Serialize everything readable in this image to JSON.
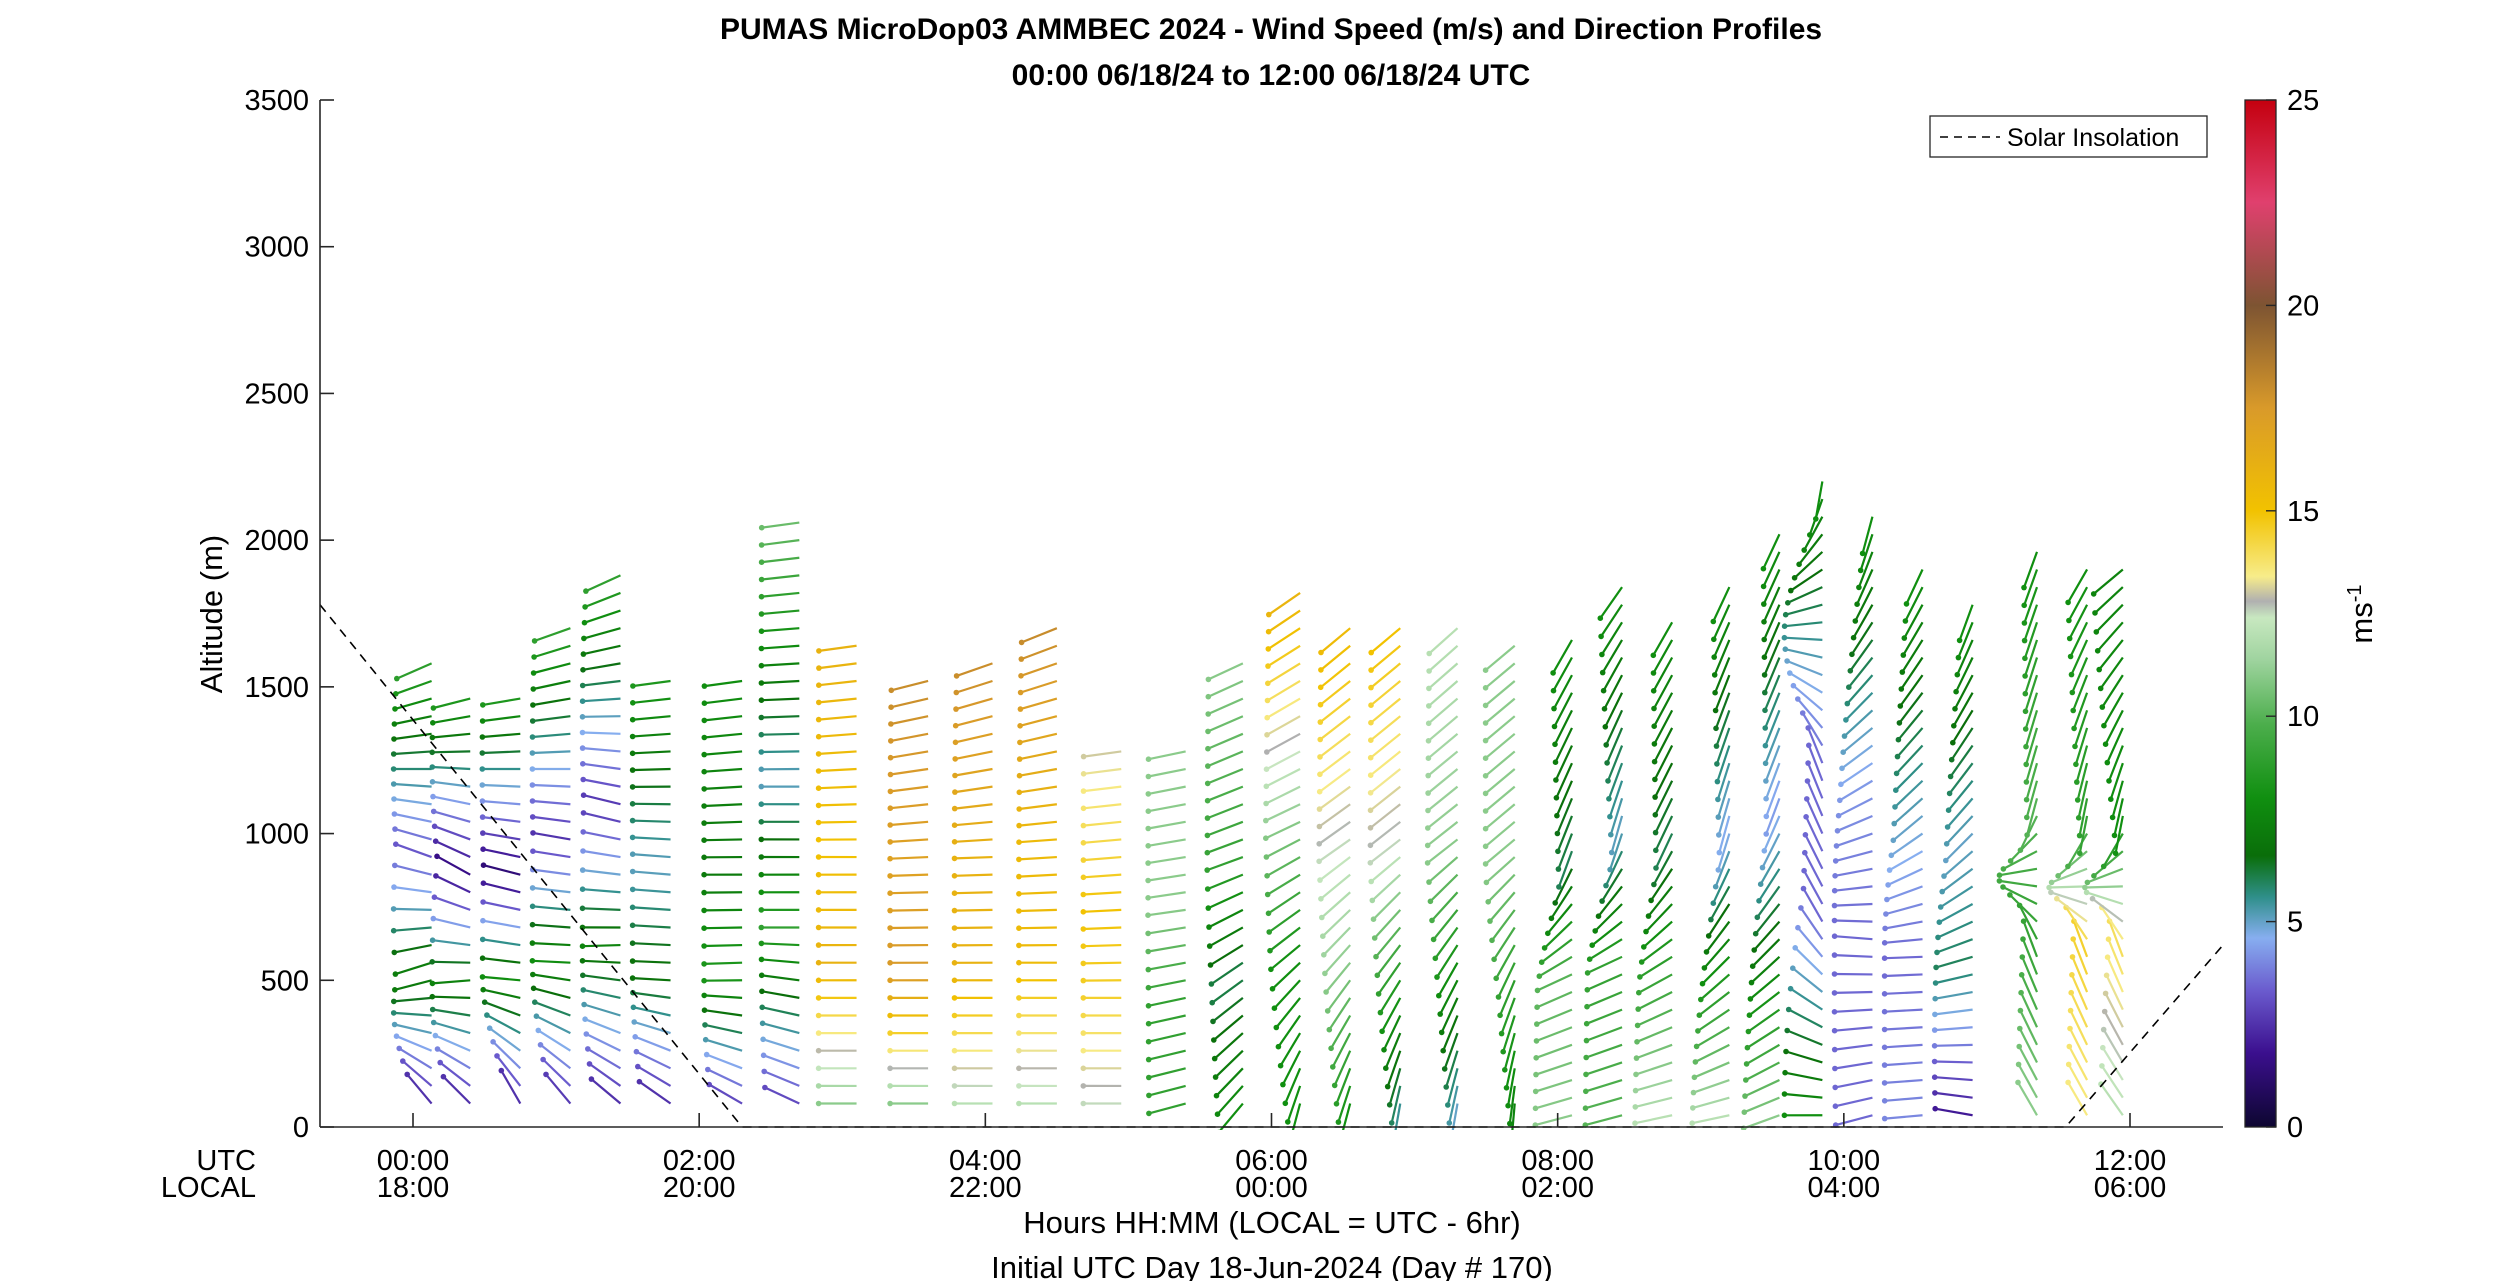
{
  "chart_data": {
    "type": "wind-barb-profile",
    "title_line1": "PUMAS MicroDop03 AMMBEC 2024 - Wind Speed (m/s) and Direction Profiles",
    "title_line2": "00:00 06/18/24 to 12:00 06/18/24  UTC",
    "ylabel": "Altitude (m)",
    "ylim": [
      0,
      3500
    ],
    "yticks": [
      0,
      500,
      1000,
      1500,
      2000,
      2500,
      3000,
      3500
    ],
    "xlim_hours": [
      -0.65,
      12.65
    ],
    "xticks_hours": [
      0,
      2,
      4,
      6,
      8,
      10,
      12
    ],
    "xticks_utc": [
      "00:00",
      "02:00",
      "04:00",
      "06:00",
      "08:00",
      "10:00",
      "12:00"
    ],
    "xticks_local": [
      "18:00",
      "20:00",
      "22:00",
      "00:00",
      "02:00",
      "04:00",
      "06:00"
    ],
    "row_label_utc": "UTC",
    "row_label_local": "LOCAL",
    "xlabel_line1": "Hours HH:MM  (LOCAL = UTC - 6hr)",
    "xlabel_line2": "Initial UTC Day 18-Jun-2024 (Day # 170)",
    "legend": {
      "label": "Solar Insolation",
      "position": "top-right",
      "line_style": "dashed"
    },
    "colorbar": {
      "label_base": "ms",
      "label_exp": "-1",
      "range": [
        0,
        25
      ],
      "ticks": [
        0,
        5,
        10,
        15,
        20,
        25
      ],
      "stops": [
        {
          "v": 0,
          "c": "#0d0630"
        },
        {
          "v": 1.8,
          "c": "#3b0f8e"
        },
        {
          "v": 3.3,
          "c": "#6a5acd"
        },
        {
          "v": 4.6,
          "c": "#87aef0"
        },
        {
          "v": 5.6,
          "c": "#2f8f8a"
        },
        {
          "v": 6.6,
          "c": "#0a6e0a"
        },
        {
          "v": 8.0,
          "c": "#108f10"
        },
        {
          "v": 9.8,
          "c": "#4cae4c"
        },
        {
          "v": 11.4,
          "c": "#a0d4a0"
        },
        {
          "v": 12.4,
          "c": "#c8e8c0"
        },
        {
          "v": 12.8,
          "c": "#b0b0b0"
        },
        {
          "v": 13.4,
          "c": "#f7ec8a"
        },
        {
          "v": 15.0,
          "c": "#f2c200"
        },
        {
          "v": 17.5,
          "c": "#d99a2a"
        },
        {
          "v": 20.0,
          "c": "#7d5432"
        },
        {
          "v": 22.5,
          "c": "#e0406e"
        },
        {
          "v": 25.0,
          "c": "#c4000f"
        }
      ]
    },
    "solar_insolation": {
      "x_hours": [
        -0.65,
        2.3,
        11.55,
        12.65
      ],
      "y_m": [
        1780,
        0,
        0,
        620
      ]
    },
    "profiles": [
      {
        "t": 0.13,
        "z": [
          80,
          1600
        ],
        "sp": [
          2.5,
          7.5,
          3.2,
          9
        ],
        "dir": [
          320,
          250,
          290,
          245
        ]
      },
      {
        "t": 0.4,
        "z": [
          80,
          1470
        ],
        "sp": [
          2.5,
          7.5,
          1.5,
          8.5
        ],
        "dir": [
          315,
          265,
          300,
          255
        ]
      },
      {
        "t": 0.75,
        "z": [
          80,
          1470
        ],
        "sp": [
          2.5,
          8,
          1.2,
          8.5
        ],
        "dir": [
          330,
          275,
          285,
          260
        ]
      },
      {
        "t": 1.1,
        "z": [
          80,
          1710
        ],
        "sp": [
          2.7,
          8,
          2.5,
          9
        ],
        "dir": [
          320,
          272,
          280,
          250
        ]
      },
      {
        "t": 1.45,
        "z": [
          80,
          1890
        ],
        "sp": [
          2.5,
          7.5,
          2.5,
          9
        ],
        "dir": [
          310,
          268,
          285,
          245
        ]
      },
      {
        "t": 1.8,
        "z": [
          80,
          1540
        ],
        "sp": [
          2.5,
          7,
          5,
          8.5
        ],
        "dir": [
          305,
          272,
          275,
          262
        ]
      },
      {
        "t": 2.3,
        "z": [
          80,
          1540
        ],
        "sp": [
          3,
          8.5,
          7,
          8
        ],
        "dir": [
          300,
          268,
          270,
          262
        ]
      },
      {
        "t": 2.7,
        "z": [
          80,
          2080
        ],
        "sp": [
          3,
          9,
          5,
          10.5
        ],
        "dir": [
          295,
          270,
          270,
          262
        ]
      },
      {
        "t": 3.1,
        "z": [
          80,
          1660
        ],
        "sp": [
          11,
          16,
          15,
          16
        ],
        "dir": [
          270,
          270,
          270,
          262
        ]
      },
      {
        "t": 3.6,
        "z": [
          80,
          1560
        ],
        "sp": [
          11,
          17.5,
          17,
          18
        ],
        "dir": [
          270,
          270,
          268,
          255
        ]
      },
      {
        "t": 4.05,
        "z": [
          80,
          1610
        ],
        "sp": [
          12,
          16,
          16,
          18
        ],
        "dir": [
          270,
          270,
          268,
          250
        ]
      },
      {
        "t": 4.5,
        "z": [
          80,
          1700
        ],
        "sp": [
          12,
          15.5,
          15.5,
          18
        ],
        "dir": [
          270,
          270,
          266,
          248
        ]
      },
      {
        "t": 4.95,
        "z": [
          80,
          1300
        ],
        "sp": [
          12.5,
          14.5,
          15,
          13
        ],
        "dir": [
          270,
          270,
          267,
          262
        ]
      },
      {
        "t": 5.4,
        "z": [
          80,
          1300
        ],
        "sp": [
          9,
          9,
          11,
          11
        ],
        "dir": [
          255,
          258,
          262,
          258
        ]
      },
      {
        "t": 5.8,
        "z": [
          80,
          1600
        ],
        "sp": [
          8,
          6,
          9,
          11
        ],
        "dir": [
          220,
          235,
          250,
          245
        ]
      },
      {
        "t": 6.2,
        "z": [
          80,
          1850
        ],
        "sp": [
          8,
          8,
          11,
          16
        ],
        "dir": [
          195,
          230,
          245,
          235
        ]
      },
      {
        "t": 6.55,
        "z": [
          80,
          1720
        ],
        "sp": [
          8,
          11,
          12.5,
          15.5
        ],
        "dir": [
          195,
          220,
          235,
          230
        ]
      },
      {
        "t": 6.9,
        "z": [
          80,
          1700
        ],
        "sp": [
          5.5,
          9,
          12.5,
          15
        ],
        "dir": [
          190,
          215,
          232,
          230
        ]
      },
      {
        "t": 7.3,
        "z": [
          80,
          1720
        ],
        "sp": [
          5,
          8,
          11,
          12
        ],
        "dir": [
          190,
          210,
          232,
          228
        ]
      },
      {
        "t": 7.7,
        "z": [
          80,
          1660
        ],
        "sp": [
          7.5,
          9,
          11,
          11
        ],
        "dir": [
          185,
          205,
          230,
          230
        ]
      },
      {
        "t": 8.1,
        "z": [
          40,
          1670
        ],
        "sp": [
          11,
          10,
          6,
          8
        ],
        "dir": [
          255,
          245,
          200,
          210
        ]
      },
      {
        "t": 8.45,
        "z": [
          40,
          1840
        ],
        "sp": [
          10,
          9,
          5,
          8
        ],
        "dir": [
          255,
          245,
          195,
          215
        ]
      },
      {
        "t": 8.8,
        "z": [
          40,
          1760
        ],
        "sp": [
          12,
          9,
          6,
          8
        ],
        "dir": [
          258,
          240,
          205,
          210
        ]
      },
      {
        "t": 9.2,
        "z": [
          40,
          1840
        ],
        "sp": [
          12,
          8,
          4.5,
          8
        ],
        "dir": [
          258,
          225,
          195,
          205
        ]
      },
      {
        "t": 9.55,
        "z": [
          40,
          2020
        ],
        "sp": [
          11,
          7,
          4.3,
          8
        ],
        "dir": [
          250,
          225,
          200,
          205
        ]
      },
      {
        "t": 9.85,
        "z": [
          40,
          2200
        ],
        "sp": [
          8,
          3.5,
          3.5,
          8
        ],
        "dir": [
          270,
          330,
          340,
          190
        ]
      },
      {
        "t": 10.2,
        "z": [
          40,
          2080
        ],
        "sp": [
          3.5,
          3.5,
          4.2,
          8
        ],
        "dir": [
          255,
          275,
          240,
          195
        ]
      },
      {
        "t": 10.55,
        "z": [
          40,
          1900
        ],
        "sp": [
          4,
          3.5,
          5,
          8
        ],
        "dir": [
          265,
          268,
          230,
          205
        ]
      },
      {
        "t": 10.9,
        "z": [
          40,
          1780
        ],
        "sp": [
          2,
          6,
          5,
          8
        ],
        "dir": [
          280,
          255,
          225,
          200
        ]
      },
      {
        "t": 11.35,
        "z": [
          40,
          1960
        ],
        "sp": [
          11,
          9,
          10,
          8
        ],
        "dir": [
          330,
          340,
          195,
          200
        ]
      },
      {
        "t": 11.7,
        "z": [
          40,
          1900
        ],
        "sp": [
          13.5,
          14.5,
          9,
          8
        ],
        "dir": [
          330,
          340,
          190,
          210
        ]
      },
      {
        "t": 11.95,
        "z": [
          40,
          1900
        ],
        "sp": [
          12,
          14,
          8,
          7.5
        ],
        "dir": [
          325,
          340,
          190,
          230
        ]
      }
    ]
  }
}
